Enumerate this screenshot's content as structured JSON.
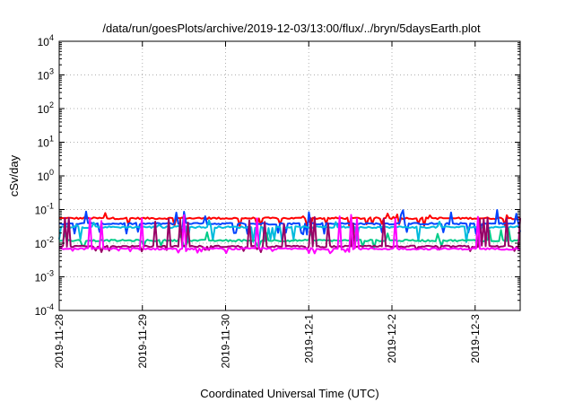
{
  "chart_data": {
    "type": "line",
    "title": "/data/run/goesPlots/archive/2019-12-03/13:00/flux/../bryn/5daysEarth.plot",
    "xlabel": "Coordinated Universal Time (UTC)",
    "ylabel": "cSv/day",
    "y_scale": "log",
    "ylim": [
      0.0001,
      10000
    ],
    "y_ticks": [
      {
        "base": "10",
        "exp": "4",
        "value": 10000
      },
      {
        "base": "10",
        "exp": "3",
        "value": 1000
      },
      {
        "base": "10",
        "exp": "2",
        "value": 100
      },
      {
        "base": "10",
        "exp": "1",
        "value": 10
      },
      {
        "base": "10",
        "exp": "0",
        "value": 1
      },
      {
        "base": "10",
        "exp": "-1",
        "value": 0.1
      },
      {
        "base": "10",
        "exp": "-2",
        "value": 0.01
      },
      {
        "base": "10",
        "exp": "-3",
        "value": 0.001
      },
      {
        "base": "10",
        "exp": "-4",
        "value": 0.0001
      }
    ],
    "x_start": "2019-11-28",
    "x_end": "2019-12-03T13:00",
    "x_ticks": [
      "2019-11-28",
      "2019-11-29",
      "2019-11-30",
      "2019-12-1",
      "2019-12-2",
      "2019-12-3"
    ],
    "grid": true,
    "series": [
      {
        "color": "#ff0000",
        "baseline": 0.055,
        "dip_min": 0.035,
        "spike_max": 0.09
      },
      {
        "color": "#0044ff",
        "baseline": 0.038,
        "dip_min": 0.02,
        "spike_max": 0.1
      },
      {
        "color": "#00bbdd",
        "baseline": 0.03,
        "dip_min": 0.012,
        "spike_max": 0.05
      },
      {
        "color": "#00cc88",
        "baseline": 0.012,
        "dip_min": 0.008,
        "spike_max": 0.03
      },
      {
        "color": "#990066",
        "baseline": 0.008,
        "dip_min": 0.006,
        "spike_max": 0.06
      },
      {
        "color": "#ff00ff",
        "baseline": 0.0068,
        "dip_min": 0.0055,
        "spike_max": 0.07
      }
    ]
  }
}
